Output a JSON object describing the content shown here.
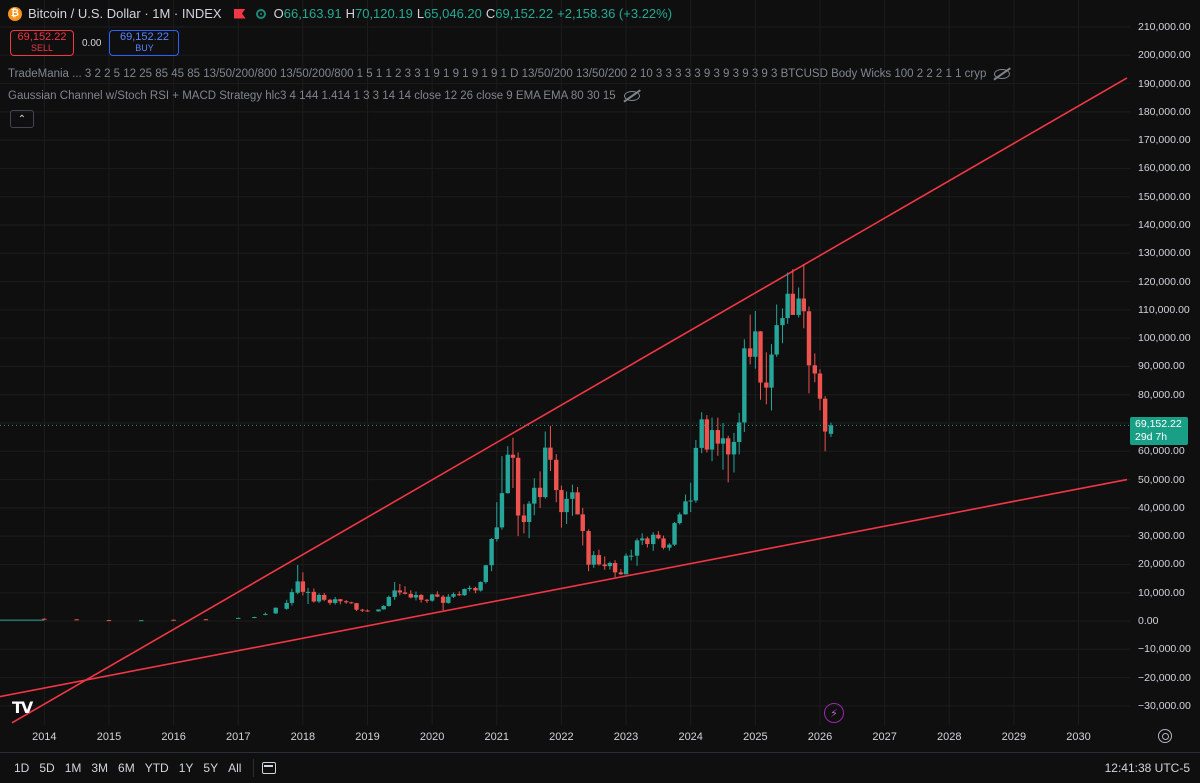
{
  "header": {
    "icon": "bitcoin-icon",
    "symbol_title": "Bitcoin / U.S. Dollar · 1M · INDEX",
    "ohlc": {
      "o_label": "O",
      "o": "66,163.91",
      "h_label": "H",
      "h": "70,120.19",
      "l_label": "L",
      "l": "65,046.20",
      "c_label": "C",
      "c": "69,152.22",
      "change": "+2,158.36 (+3.22%)"
    }
  },
  "trade": {
    "sell_price": "69,152.22",
    "sell_label": "SELL",
    "spread": "0.00",
    "buy_price": "69,152.22",
    "buy_label": "BUY"
  },
  "indicators": [
    "TradeMania ... 3 2 2 5 12 25 85 45 85 13/50/200/800 13/50/200/800 1 5 1 1 2 3 3 1 9 1 9 1 9 1 9 1 D 13/50/200 13/50/200 2 10 3 3 3 3 3 9 3 9 3 9 3 9 3 BTCUSD Body Wicks 100 2 2 2 1 1 cryp",
    "Gaussian Channel w/Stoch RSI + MACD Strategy hlc3 4 144 1.414 1 3 3 14 14 close 12 26 close 9 EMA EMA 80 30 15"
  ],
  "collapse_glyph": "⌃",
  "price_axis": {
    "ticks": [
      "210,000.00",
      "200,000.00",
      "190,000.00",
      "180,000.00",
      "170,000.00",
      "160,000.00",
      "150,000.00",
      "140,000.00",
      "130,000.00",
      "120,000.00",
      "110,000.00",
      "100,000.00",
      "90,000.00",
      "80,000.00",
      "70,000.00",
      "60,000.00",
      "50,000.00",
      "40,000.00",
      "30,000.00",
      "20,000.00",
      "10,000.00",
      "0.00",
      "−10,000.00",
      "−20,000.00",
      "−30,000.00"
    ],
    "last_price": "69,152.22",
    "countdown": "29d 7h"
  },
  "time_axis": {
    "ticks": [
      "2014",
      "2015",
      "2016",
      "2017",
      "2018",
      "2019",
      "2020",
      "2021",
      "2022",
      "2023",
      "2024",
      "2025",
      "2026",
      "2027",
      "2028",
      "2029",
      "2030"
    ]
  },
  "bottom_bar": {
    "ranges": [
      "1D",
      "5D",
      "1M",
      "3M",
      "6M",
      "YTD",
      "1Y",
      "5Y",
      "All"
    ],
    "clock": "12:41:38 UTC-5"
  },
  "logo_text": "TV",
  "colors": {
    "up": "#26a69a",
    "down": "#ef5350",
    "trendline": "#f23645",
    "background": "#0f0f0f",
    "last_price": "#1a9f87"
  },
  "chart_data": {
    "type": "candlestick",
    "timeframe": "1M",
    "y_range": [
      -35000,
      215000
    ],
    "x_range": [
      2013.5,
      2030.75
    ],
    "trendlines": [
      {
        "name": "upper",
        "points": [
          [
            2013.5,
            -36000
          ],
          [
            2030.75,
            192000
          ]
        ]
      },
      {
        "name": "lower",
        "points": [
          [
            2013.25,
            -27000
          ],
          [
            2030.75,
            50000
          ]
        ]
      }
    ],
    "last_price": 69152.22,
    "candles": [
      [
        2014.0,
        800,
        950,
        700,
        650
      ],
      [
        2014.5,
        600,
        650,
        400,
        400
      ],
      [
        2015.0,
        310,
        400,
        200,
        230
      ],
      [
        2015.5,
        250,
        320,
        220,
        280
      ],
      [
        2016.0,
        430,
        460,
        350,
        410
      ],
      [
        2016.5,
        620,
        700,
        550,
        600
      ],
      [
        2017.0,
        1000,
        1200,
        900,
        1100
      ],
      [
        2017.25,
        1100,
        1500,
        1000,
        1400
      ],
      [
        2017.42,
        2300,
        3000,
        2000,
        2500
      ],
      [
        2017.58,
        2700,
        4800,
        2500,
        4700
      ],
      [
        2017.75,
        4300,
        7500,
        4000,
        6400
      ],
      [
        2017.83,
        6400,
        11400,
        5500,
        10200
      ],
      [
        2017.92,
        10000,
        19800,
        9500,
        14000
      ],
      [
        2018.0,
        14000,
        17200,
        9000,
        10300
      ],
      [
        2018.08,
        10300,
        11700,
        6000,
        10300
      ],
      [
        2018.17,
        10300,
        11500,
        6500,
        6900
      ],
      [
        2018.25,
        6900,
        9800,
        6400,
        9200
      ],
      [
        2018.33,
        9200,
        9900,
        7000,
        7500
      ],
      [
        2018.42,
        7500,
        7800,
        5700,
        6400
      ],
      [
        2018.5,
        6400,
        8500,
        5800,
        7700
      ],
      [
        2018.58,
        7700,
        7800,
        5900,
        7000
      ],
      [
        2018.67,
        7000,
        7400,
        6100,
        6600
      ],
      [
        2018.75,
        6600,
        6800,
        6100,
        6300
      ],
      [
        2018.83,
        6300,
        6400,
        3500,
        4000
      ],
      [
        2018.92,
        4000,
        4300,
        3200,
        3700
      ],
      [
        2019.0,
        3700,
        4100,
        3300,
        3400
      ],
      [
        2019.17,
        3400,
        4100,
        3300,
        4100
      ],
      [
        2019.25,
        4100,
        5600,
        4000,
        5300
      ],
      [
        2019.33,
        5300,
        9000,
        5100,
        8500
      ],
      [
        2019.42,
        8500,
        13800,
        7500,
        10800
      ],
      [
        2019.5,
        10800,
        13100,
        9100,
        10100
      ],
      [
        2019.58,
        10100,
        12300,
        9400,
        9600
      ],
      [
        2019.67,
        9600,
        10900,
        8000,
        8300
      ],
      [
        2019.75,
        8300,
        10400,
        7300,
        9200
      ],
      [
        2019.83,
        9200,
        9500,
        6500,
        7500
      ],
      [
        2019.92,
        7500,
        7800,
        6400,
        7200
      ],
      [
        2020.0,
        7200,
        9600,
        6800,
        9400
      ],
      [
        2020.08,
        9400,
        10500,
        8400,
        8600
      ],
      [
        2020.17,
        8600,
        9200,
        3800,
        6400
      ],
      [
        2020.25,
        6400,
        9500,
        6100,
        8600
      ],
      [
        2020.33,
        8600,
        10100,
        8100,
        9500
      ],
      [
        2020.42,
        9500,
        10500,
        8900,
        9100
      ],
      [
        2020.5,
        9100,
        11500,
        8900,
        11300
      ],
      [
        2020.58,
        11300,
        12500,
        10500,
        11700
      ],
      [
        2020.67,
        11700,
        12100,
        9800,
        10800
      ],
      [
        2020.75,
        10800,
        14000,
        10400,
        13800
      ],
      [
        2020.83,
        13800,
        19800,
        13200,
        19700
      ],
      [
        2020.92,
        19700,
        29300,
        17600,
        29000
      ],
      [
        2021.0,
        29000,
        42000,
        28100,
        33100
      ],
      [
        2021.08,
        33100,
        58300,
        32300,
        45200
      ],
      [
        2021.17,
        45200,
        61800,
        45000,
        58800
      ],
      [
        2021.25,
        58800,
        64800,
        47000,
        57700
      ],
      [
        2021.33,
        57700,
        59600,
        30000,
        37300
      ],
      [
        2021.42,
        37300,
        41300,
        31000,
        35000
      ],
      [
        2021.5,
        35000,
        42400,
        29300,
        41500
      ],
      [
        2021.58,
        41500,
        50500,
        37400,
        47100
      ],
      [
        2021.67,
        47100,
        52900,
        40000,
        43800
      ],
      [
        2021.75,
        43800,
        67000,
        43300,
        61300
      ],
      [
        2021.83,
        61300,
        69000,
        53000,
        57000
      ],
      [
        2021.92,
        57000,
        59000,
        42000,
        46300
      ],
      [
        2022.0,
        46300,
        47900,
        33000,
        38500
      ],
      [
        2022.08,
        38500,
        45800,
        34300,
        43200
      ],
      [
        2022.17,
        43200,
        48200,
        37200,
        45500
      ],
      [
        2022.25,
        45500,
        47400,
        37600,
        37700
      ],
      [
        2022.33,
        37700,
        40000,
        26700,
        31800
      ],
      [
        2022.42,
        31800,
        32400,
        17600,
        19900
      ],
      [
        2022.5,
        19900,
        24700,
        18800,
        23300
      ],
      [
        2022.58,
        23300,
        25200,
        19600,
        20000
      ],
      [
        2022.67,
        20000,
        22800,
        18100,
        19400
      ],
      [
        2022.75,
        19400,
        21000,
        18200,
        20500
      ],
      [
        2022.83,
        20500,
        21500,
        15500,
        17200
      ],
      [
        2022.92,
        17200,
        18400,
        16300,
        16500
      ],
      [
        2023.0,
        16500,
        23900,
        16500,
        23100
      ],
      [
        2023.08,
        23100,
        25200,
        21400,
        23100
      ],
      [
        2023.17,
        23100,
        29200,
        19500,
        28500
      ],
      [
        2023.25,
        28500,
        31000,
        26900,
        29200
      ],
      [
        2023.33,
        29200,
        29800,
        26000,
        27200
      ],
      [
        2023.42,
        27200,
        31400,
        24800,
        30500
      ],
      [
        2023.5,
        30500,
        31800,
        28900,
        29200
      ],
      [
        2023.58,
        29200,
        30200,
        25300,
        25900
      ],
      [
        2023.67,
        25900,
        27500,
        24900,
        27000
      ],
      [
        2023.75,
        27000,
        35000,
        26500,
        34600
      ],
      [
        2023.83,
        34600,
        38400,
        34100,
        37700
      ],
      [
        2023.92,
        37700,
        44700,
        37600,
        42300
      ],
      [
        2024.0,
        42300,
        48900,
        38500,
        42600
      ],
      [
        2024.08,
        42600,
        64000,
        41800,
        61200
      ],
      [
        2024.17,
        61200,
        73800,
        59300,
        71300
      ],
      [
        2024.25,
        71300,
        72800,
        59600,
        60600
      ],
      [
        2024.33,
        60600,
        71900,
        56500,
        67500
      ],
      [
        2024.42,
        67500,
        71900,
        58400,
        62700
      ],
      [
        2024.5,
        62700,
        70000,
        53500,
        64600
      ],
      [
        2024.58,
        64600,
        65500,
        49000,
        58900
      ],
      [
        2024.67,
        58900,
        66500,
        52500,
        63300
      ],
      [
        2024.75,
        63300,
        73600,
        58900,
        70200
      ],
      [
        2024.83,
        70200,
        99600,
        66800,
        96400
      ],
      [
        2024.92,
        96400,
        108300,
        90700,
        93400
      ],
      [
        2025.0,
        93400,
        109600,
        89200,
        102400
      ],
      [
        2025.08,
        102400,
        102500,
        78200,
        84300
      ],
      [
        2025.17,
        84300,
        95000,
        76600,
        82500
      ],
      [
        2025.25,
        82500,
        97900,
        74400,
        94200
      ],
      [
        2025.33,
        94200,
        111900,
        93400,
        104600
      ],
      [
        2025.42,
        104600,
        110500,
        98200,
        107100
      ],
      [
        2025.5,
        107100,
        123200,
        105100,
        115700
      ],
      [
        2025.58,
        115700,
        124400,
        108700,
        108200
      ],
      [
        2025.67,
        108200,
        117900,
        107300,
        114000
      ],
      [
        2025.75,
        114000,
        126200,
        103500,
        109500
      ],
      [
        2025.83,
        109500,
        111200,
        80500,
        90400
      ],
      [
        2025.92,
        90400,
        94600,
        84400,
        87500
      ],
      [
        2026.0,
        87500,
        89000,
        74500,
        78600
      ],
      [
        2026.08,
        78600,
        79500,
        60000,
        66990
      ],
      [
        2026.17,
        66164,
        70120,
        65046,
        69152
      ]
    ]
  }
}
